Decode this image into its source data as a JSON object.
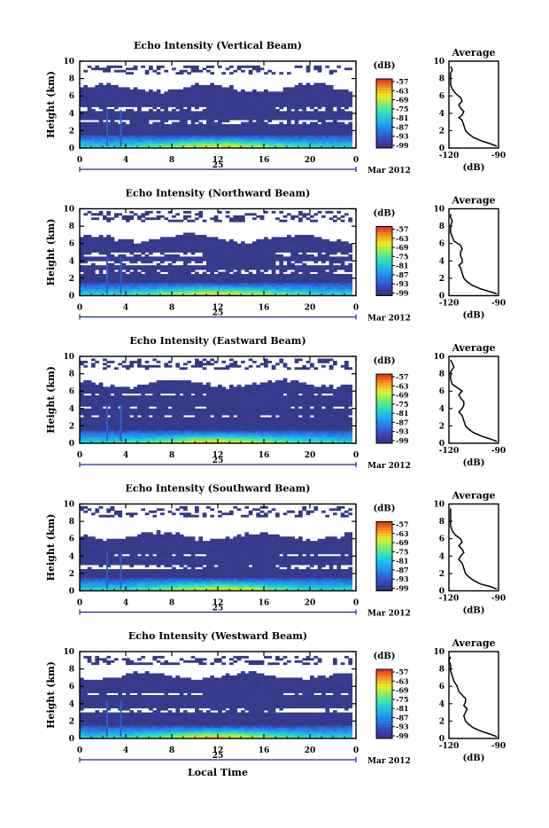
{
  "chart_data": [
    {
      "type": "heatmap",
      "title": "Echo Intensity (Vertical Beam)",
      "ylabel": "Height (km)",
      "xlabel": "",
      "x_ticks": [
        "0",
        "4",
        "8",
        "12",
        "16",
        "20",
        "0"
      ],
      "xlim": [
        0,
        24
      ],
      "y_ticks": [
        "0",
        "2",
        "4",
        "6",
        "8",
        "10"
      ],
      "ylim": [
        0,
        10
      ],
      "date_day": "25",
      "date_month": "Mar 2012",
      "colorbar": {
        "unit": "(dB)",
        "ticks": [
          "-57",
          "-63",
          "-69",
          "-75",
          "-81",
          "-87",
          "-93",
          "-99"
        ]
      },
      "average": {
        "title": "Average",
        "xlabel": "(dB)",
        "x_ticks": [
          "-120",
          "-90"
        ],
        "xlim": [
          -120,
          -90
        ],
        "y_ticks": [
          "0",
          "2",
          "4",
          "6",
          "8",
          "10"
        ],
        "profile": [
          [
            -91,
            0.2
          ],
          [
            -95,
            0.5
          ],
          [
            -100,
            0.8
          ],
          [
            -105,
            1.2
          ],
          [
            -108,
            1.6
          ],
          [
            -110,
            2.0
          ],
          [
            -111,
            2.6
          ],
          [
            -112,
            3.2
          ],
          [
            -114,
            3.5
          ],
          [
            -112,
            3.8
          ],
          [
            -111,
            4.2
          ],
          [
            -113,
            4.6
          ],
          [
            -114,
            5.0
          ],
          [
            -112,
            5.4
          ],
          [
            -113,
            5.8
          ],
          [
            -116,
            6.3
          ],
          [
            -118,
            6.8
          ],
          [
            -119,
            7.3
          ],
          [
            -119,
            8.0
          ],
          [
            -119,
            8.6
          ],
          [
            -118,
            9.0
          ],
          [
            -119,
            9.4
          ]
        ]
      },
      "image": {
        "top": 6.9,
        "boundary": 2.8,
        "upper_top": 9.6,
        "gaps": [
          [
            4.3,
            4.7
          ],
          [
            3.0,
            3.3
          ]
        ]
      }
    },
    {
      "type": "heatmap",
      "title": "Echo Intensity (Northward Beam)",
      "ylabel": "Height (km)",
      "xlabel": "",
      "x_ticks": [
        "0",
        "4",
        "8",
        "12",
        "16",
        "20",
        "0"
      ],
      "xlim": [
        0,
        24
      ],
      "y_ticks": [
        "0",
        "2",
        "4",
        "6",
        "8",
        "10"
      ],
      "ylim": [
        0,
        10
      ],
      "date_day": "25",
      "date_month": "Mar 2012",
      "colorbar": {
        "unit": "(dB)",
        "ticks": [
          "-57",
          "-63",
          "-69",
          "-75",
          "-81",
          "-87",
          "-93",
          "-99"
        ]
      },
      "average": {
        "title": "Average",
        "xlabel": "(dB)",
        "x_ticks": [
          "-120",
          "-90"
        ],
        "xlim": [
          -120,
          -90
        ],
        "y_ticks": [
          "0",
          "2",
          "4",
          "6",
          "8",
          "10"
        ],
        "profile": [
          [
            -91,
            0.2
          ],
          [
            -96,
            0.5
          ],
          [
            -101,
            0.8
          ],
          [
            -106,
            1.2
          ],
          [
            -109,
            1.6
          ],
          [
            -111,
            2.0
          ],
          [
            -112,
            2.6
          ],
          [
            -113,
            3.2
          ],
          [
            -114,
            3.5
          ],
          [
            -112,
            3.8
          ],
          [
            -112,
            4.2
          ],
          [
            -113,
            4.6
          ],
          [
            -113,
            5.0
          ],
          [
            -112,
            5.4
          ],
          [
            -113,
            5.8
          ],
          [
            -117,
            6.3
          ],
          [
            -118,
            6.8
          ],
          [
            -119,
            7.3
          ],
          [
            -119,
            8.0
          ],
          [
            -118,
            8.6
          ],
          [
            -119,
            9.0
          ],
          [
            -119,
            9.4
          ]
        ]
      },
      "image": {
        "top": 6.6,
        "boundary": 2.6,
        "upper_top": 9.7,
        "gaps": [
          [
            3.6,
            4.0
          ],
          [
            4.6,
            5.0
          ]
        ]
      }
    },
    {
      "type": "heatmap",
      "title": "Echo Intensity (Eastward Beam)",
      "ylabel": "Height (km)",
      "xlabel": "",
      "x_ticks": [
        "0",
        "4",
        "8",
        "12",
        "16",
        "20",
        "0"
      ],
      "xlim": [
        0,
        24
      ],
      "y_ticks": [
        "0",
        "2",
        "4",
        "6",
        "8",
        "10"
      ],
      "ylim": [
        0,
        10
      ],
      "date_day": "25",
      "date_month": "Mar 2012",
      "colorbar": {
        "unit": "(dB)",
        "ticks": [
          "-57",
          "-63",
          "-69",
          "-75",
          "-81",
          "-87",
          "-93",
          "-99"
        ]
      },
      "average": {
        "title": "Average",
        "xlabel": "(dB)",
        "x_ticks": [
          "-120",
          "-90"
        ],
        "xlim": [
          -120,
          -90
        ],
        "y_ticks": [
          "0",
          "2",
          "4",
          "6",
          "8",
          "10"
        ],
        "profile": [
          [
            -91,
            0.2
          ],
          [
            -95,
            0.5
          ],
          [
            -100,
            0.8
          ],
          [
            -105,
            1.2
          ],
          [
            -108,
            1.6
          ],
          [
            -110,
            2.0
          ],
          [
            -111,
            2.6
          ],
          [
            -112,
            3.2
          ],
          [
            -114,
            3.6
          ],
          [
            -112,
            4.0
          ],
          [
            -111,
            4.4
          ],
          [
            -111,
            4.8
          ],
          [
            -113,
            5.2
          ],
          [
            -114,
            5.6
          ],
          [
            -112,
            6.0
          ],
          [
            -115,
            6.4
          ],
          [
            -118,
            6.8
          ],
          [
            -119,
            7.4
          ],
          [
            -119,
            8.2
          ],
          [
            -117,
            8.8
          ],
          [
            -118,
            9.2
          ],
          [
            -119,
            9.6
          ]
        ]
      },
      "image": {
        "top": 6.9,
        "boundary": 2.9,
        "upper_top": 9.7,
        "gaps": [
          [
            3.9,
            4.3
          ],
          [
            5.5,
            5.8
          ]
        ]
      }
    },
    {
      "type": "heatmap",
      "title": "Echo Intensity (Southward Beam)",
      "ylabel": "Height (km)",
      "xlabel": "",
      "x_ticks": [
        "0",
        "4",
        "8",
        "12",
        "16",
        "20",
        "0"
      ],
      "xlim": [
        0,
        24
      ],
      "y_ticks": [
        "0",
        "2",
        "4",
        "6",
        "8",
        "10"
      ],
      "ylim": [
        0,
        10
      ],
      "date_day": "25",
      "date_month": "Mar 2012",
      "colorbar": {
        "unit": "(dB)",
        "ticks": [
          "-57",
          "-63",
          "-69",
          "-75",
          "-81",
          "-87",
          "-93",
          "-99"
        ]
      },
      "average": {
        "title": "Average",
        "xlabel": "(dB)",
        "x_ticks": [
          "-120",
          "-90"
        ],
        "xlim": [
          -120,
          -90
        ],
        "y_ticks": [
          "0",
          "2",
          "4",
          "6",
          "8",
          "10"
        ],
        "profile": [
          [
            -91,
            0.2
          ],
          [
            -95,
            0.5
          ],
          [
            -101,
            0.8
          ],
          [
            -105,
            1.2
          ],
          [
            -108,
            1.6
          ],
          [
            -110,
            2.0
          ],
          [
            -111,
            2.6
          ],
          [
            -112,
            3.2
          ],
          [
            -114,
            3.6
          ],
          [
            -113,
            4.0
          ],
          [
            -111,
            4.4
          ],
          [
            -112,
            4.8
          ],
          [
            -114,
            5.2
          ],
          [
            -112,
            5.6
          ],
          [
            -113,
            6.0
          ],
          [
            -116,
            6.4
          ],
          [
            -118,
            6.9
          ],
          [
            -119,
            7.5
          ],
          [
            -119,
            8.3
          ],
          [
            -119,
            9.0
          ],
          [
            -119,
            9.5
          ]
        ]
      },
      "image": {
        "top": 6.3,
        "boundary": 2.7,
        "upper_top": 9.8,
        "gaps": [
          [
            3.9,
            4.2
          ],
          [
            2.6,
            2.9
          ]
        ]
      }
    },
    {
      "type": "heatmap",
      "title": "Echo Intensity (Westward Beam)",
      "ylabel": "Height (km)",
      "xlabel": "Local Time",
      "x_ticks": [
        "0",
        "4",
        "8",
        "12",
        "16",
        "20",
        "0"
      ],
      "xlim": [
        0,
        24
      ],
      "y_ticks": [
        "0",
        "2",
        "4",
        "6",
        "8",
        "10"
      ],
      "ylim": [
        0,
        10
      ],
      "date_day": "25",
      "date_month": "Mar 2012",
      "colorbar": {
        "unit": "(dB)",
        "ticks": [
          "-57",
          "-63",
          "-69",
          "-75",
          "-81",
          "-87",
          "-93",
          "-99"
        ]
      },
      "average": {
        "title": "Average",
        "xlabel": "(dB)",
        "x_ticks": [
          "-120",
          "-90"
        ],
        "xlim": [
          -120,
          -90
        ],
        "y_ticks": [
          "0",
          "2",
          "4",
          "6",
          "8",
          "10"
        ],
        "profile": [
          [
            -91,
            0.2
          ],
          [
            -95,
            0.5
          ],
          [
            -100,
            0.8
          ],
          [
            -105,
            1.2
          ],
          [
            -108,
            1.6
          ],
          [
            -110,
            2.0
          ],
          [
            -111,
            2.6
          ],
          [
            -110,
            3.0
          ],
          [
            -109,
            3.4
          ],
          [
            -111,
            3.8
          ],
          [
            -110,
            4.2
          ],
          [
            -110,
            4.6
          ],
          [
            -112,
            5.0
          ],
          [
            -114,
            5.4
          ],
          [
            -115,
            6.0
          ],
          [
            -117,
            6.6
          ],
          [
            -118,
            7.2
          ],
          [
            -119,
            7.8
          ],
          [
            -119,
            8.4
          ],
          [
            -120,
            9.0
          ],
          [
            -119,
            9.4
          ]
        ]
      },
      "image": {
        "top": 7.2,
        "boundary": 3.0,
        "upper_top": 9.4,
        "gaps": [
          [
            3.1,
            3.5
          ],
          [
            5.0,
            5.3
          ]
        ]
      }
    }
  ]
}
